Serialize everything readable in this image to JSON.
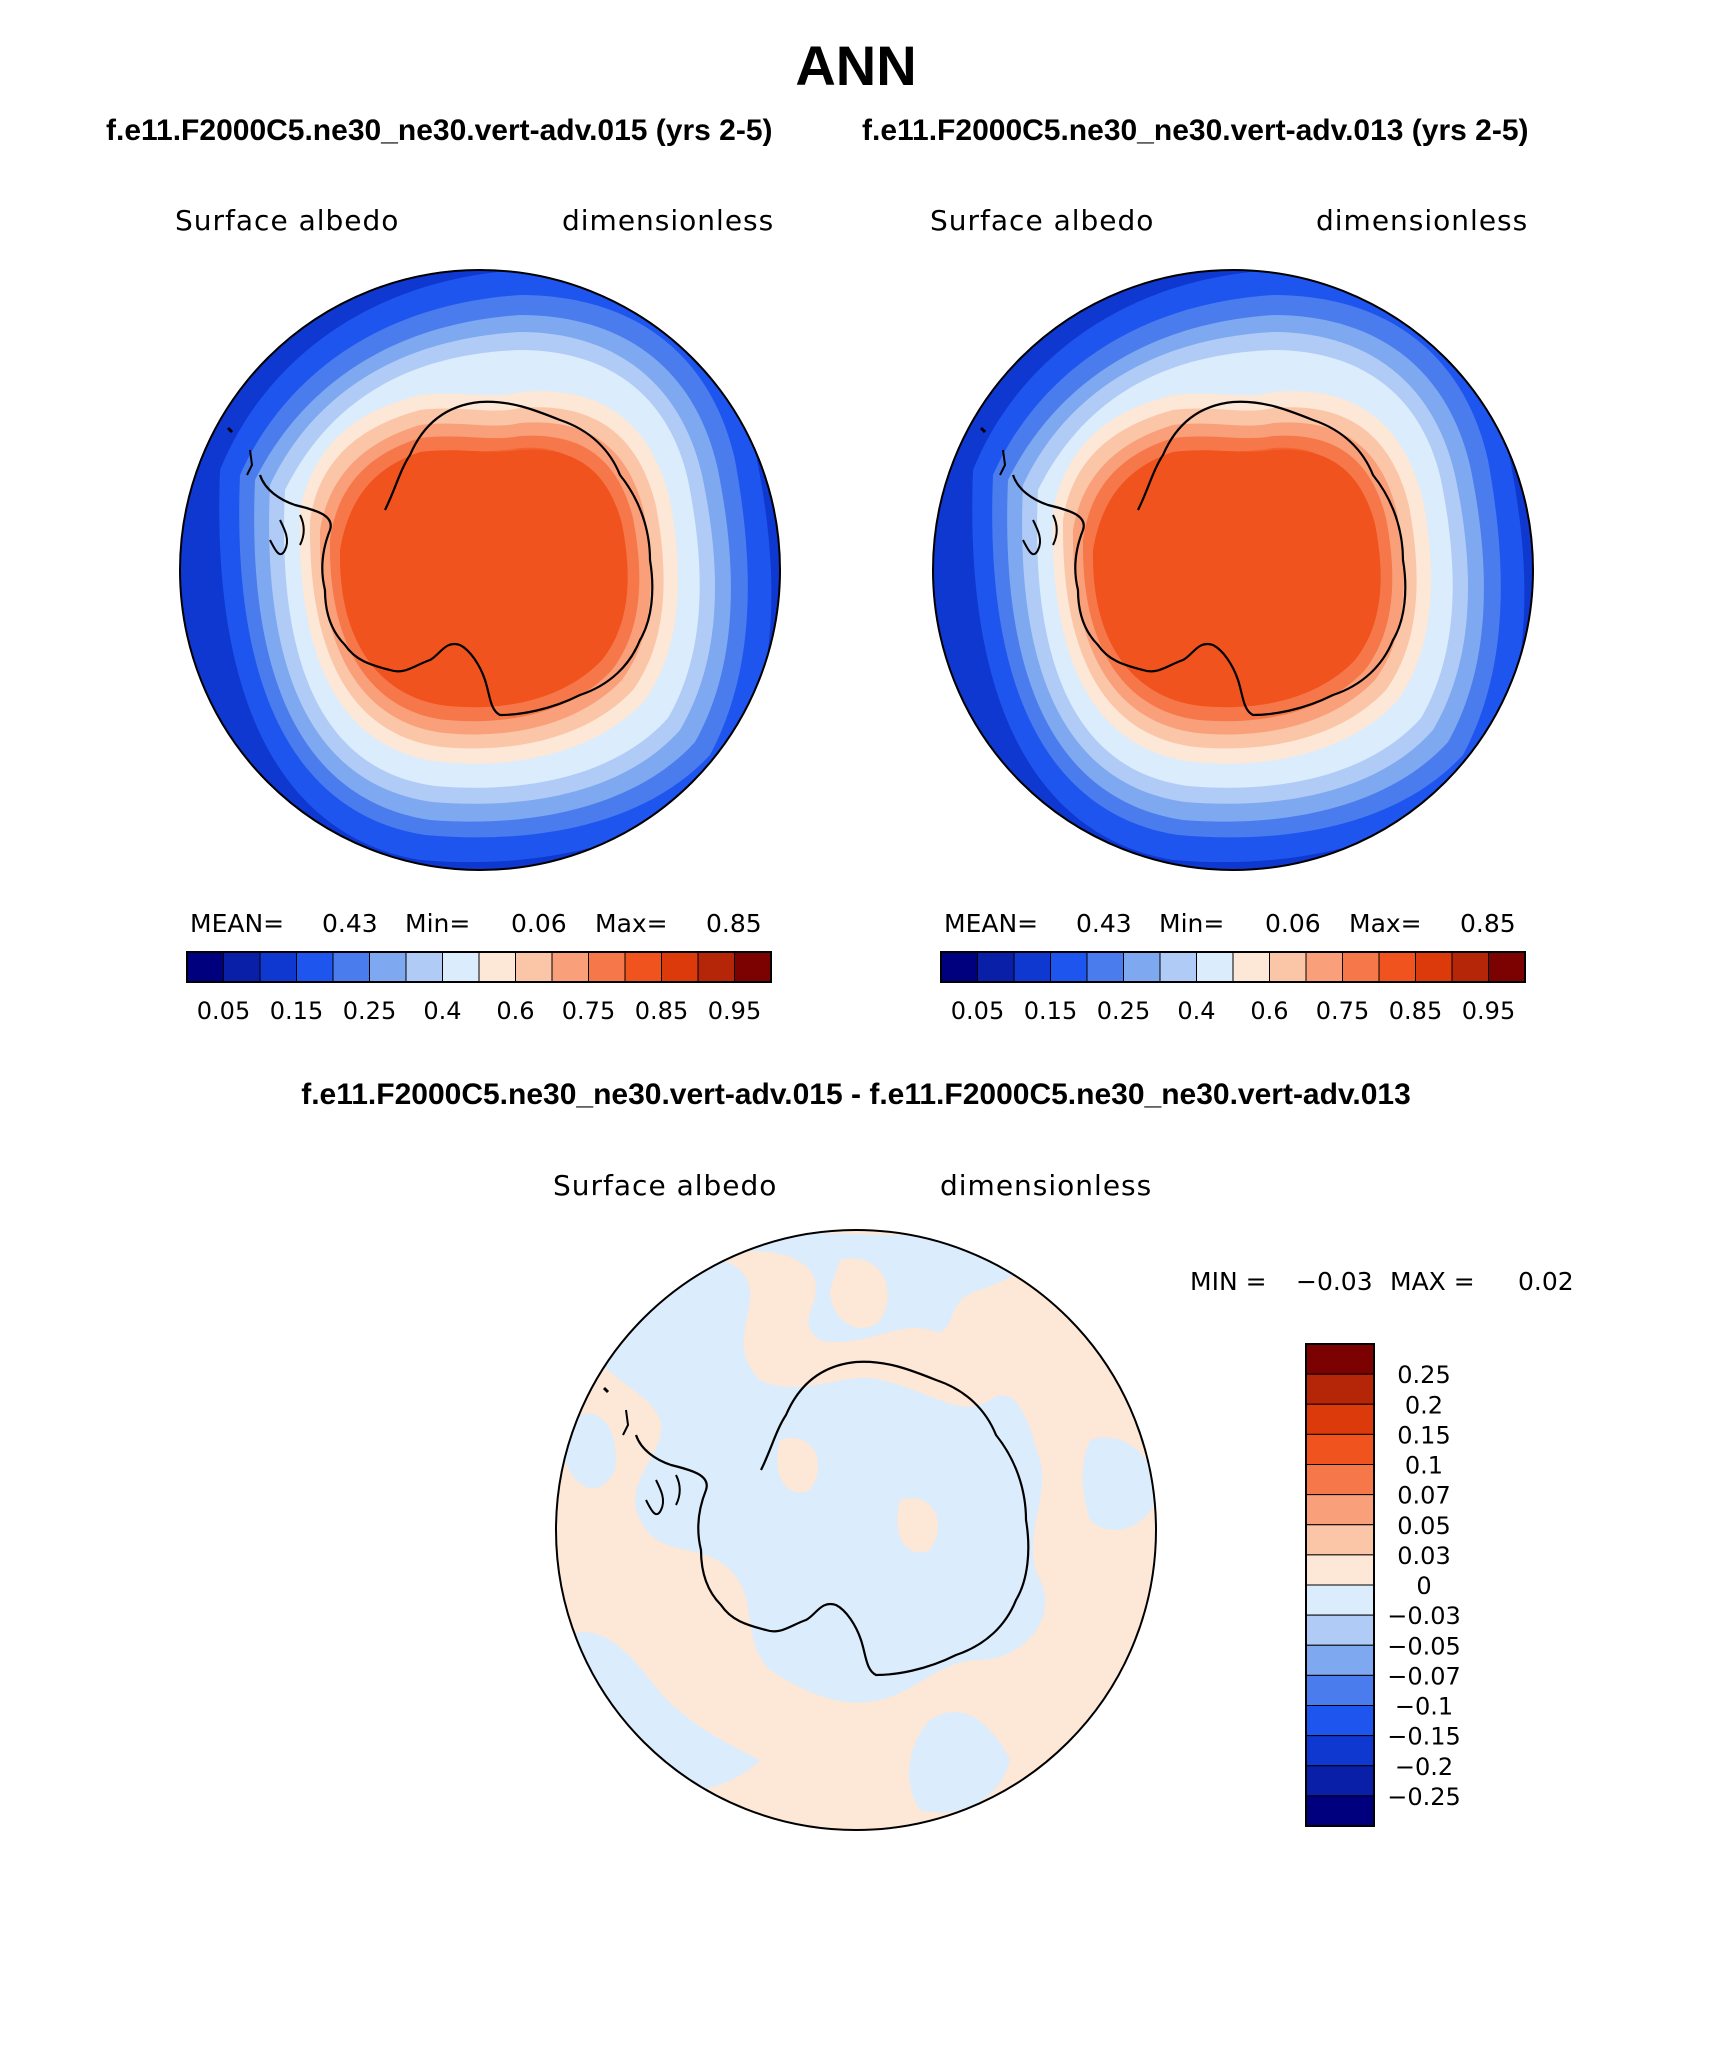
{
  "title": "ANN",
  "panels": [
    {
      "case_title": "f.e11.F2000C5.ne30_ne30.vert-adv.015 (yrs 2-5)",
      "variable": "Surface albedo",
      "units": "dimensionless",
      "stats": {
        "mean_label": "MEAN=",
        "mean": "0.43",
        "min_label": "Min=",
        "min": "0.06",
        "max_label": "Max=",
        "max": "0.85"
      }
    },
    {
      "case_title": "f.e11.F2000C5.ne30_ne30.vert-adv.013 (yrs 2-5)",
      "variable": "Surface albedo",
      "units": "dimensionless",
      "stats": {
        "mean_label": "MEAN=",
        "mean": "0.43",
        "min_label": "Min=",
        "min": "0.06",
        "max_label": "Max=",
        "max": "0.85"
      }
    }
  ],
  "colorbar": {
    "colors": [
      "#00007f",
      "#0a1fa8",
      "#0e38cf",
      "#1e55ee",
      "#4a7cee",
      "#7ea8f0",
      "#b0ccf6",
      "#dbecfd",
      "#fde7d6",
      "#fbc6a8",
      "#f9a07a",
      "#f6784a",
      "#f1531e",
      "#dd3a0c",
      "#b52508",
      "#7c0202"
    ],
    "labels": [
      "0.05",
      "0.15",
      "0.25",
      "0.4",
      "0.6",
      "0.75",
      "0.85",
      "0.95"
    ]
  },
  "difference": {
    "title": "f.e11.F2000C5.ne30_ne30.vert-adv.015 - f.e11.F2000C5.ne30_ne30.vert-adv.013",
    "variable": "Surface albedo",
    "units": "dimensionless",
    "stats": {
      "min_label": "MIN =",
      "min": "−0.03",
      "max_label": "MAX =",
      "max": "0.02"
    },
    "colorbar": {
      "colors_top_down": [
        "#7c0202",
        "#b52508",
        "#dd3a0c",
        "#f1531e",
        "#f6784a",
        "#f9a07a",
        "#fbc6a8",
        "#fde7d6",
        "#dbecfd",
        "#b0ccf6",
        "#7ea8f0",
        "#4a7cee",
        "#1e55ee",
        "#0e38cf",
        "#0a1fa8",
        "#00007f"
      ],
      "labels_top_down": [
        "0.25",
        "0.2",
        "0.15",
        "0.1",
        "0.07",
        "0.05",
        "0.03",
        "0",
        "−0.03",
        "−0.05",
        "−0.07",
        "−0.1",
        "−0.15",
        "−0.2",
        "−0.25"
      ]
    }
  }
}
